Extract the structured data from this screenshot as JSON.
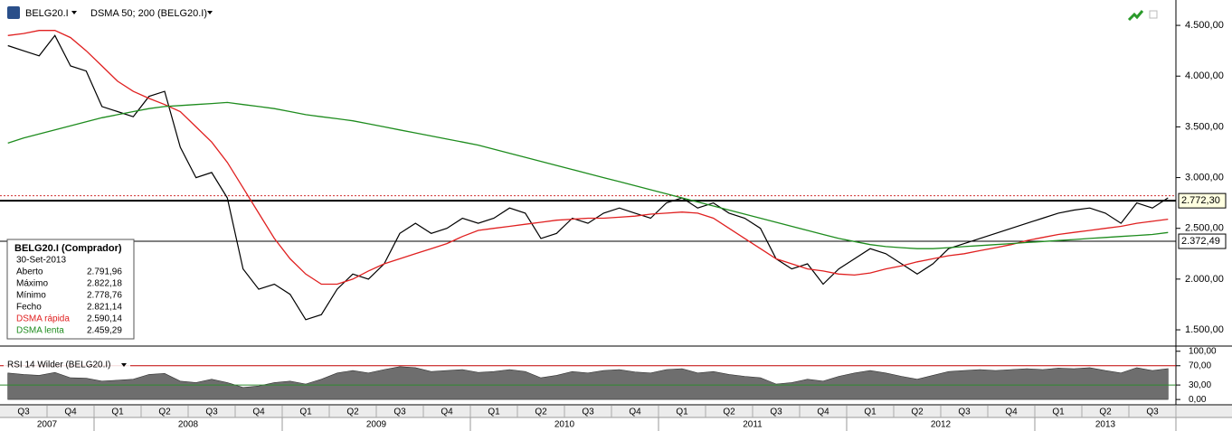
{
  "header": {
    "symbol": "BELG20.I",
    "indicator": "DSMA 50; 200 (BELG20.I)"
  },
  "info_box": {
    "title": "BELG20.I (Comprador)",
    "date": "30-Set-2013",
    "rows": [
      [
        "Aberto",
        "2.791,96"
      ],
      [
        "Máximo",
        "2.822,18"
      ],
      [
        "Mínimo",
        "2.778,76"
      ],
      [
        "Fecho",
        "2.821,14"
      ],
      [
        "DSMA rápida",
        "2.590,14"
      ],
      [
        "DSMA lenta",
        "2.459,29"
      ]
    ]
  },
  "x_axis": {
    "quarters": [
      "Q3",
      "Q4",
      "Q1",
      "Q2",
      "Q3",
      "Q4",
      "Q1",
      "Q2",
      "Q3",
      "Q4",
      "Q1",
      "Q2",
      "Q3",
      "Q4",
      "Q1",
      "Q2",
      "Q3",
      "Q4",
      "Q1",
      "Q2",
      "Q3",
      "Q4",
      "Q1",
      "Q2",
      "Q3"
    ],
    "years": [
      "2007",
      "2008",
      "2009",
      "2010",
      "2011",
      "2012",
      "2013"
    ]
  },
  "chart_data": [
    {
      "type": "line",
      "ylim": [
        1340,
        4750
      ],
      "yticks": [
        {
          "value": 1500,
          "label": "1.500,00"
        },
        {
          "value": 2000,
          "label": "2.000,00"
        },
        {
          "value": 2500,
          "label": "2.500,00"
        },
        {
          "value": 3000,
          "label": "3.000,00"
        },
        {
          "value": 3500,
          "label": "3.500,00"
        },
        {
          "value": 4000,
          "label": "4.000,00"
        },
        {
          "value": 4500,
          "label": "4.500,00"
        }
      ],
      "series": [
        {
          "name": "BELG20.I",
          "color": "#000000",
          "values": [
            4300,
            4250,
            4200,
            4400,
            4100,
            4050,
            3700,
            3650,
            3600,
            3800,
            3850,
            3300,
            3000,
            3050,
            2800,
            2100,
            1900,
            1950,
            1850,
            1600,
            1650,
            1900,
            2050,
            2000,
            2150,
            2450,
            2550,
            2450,
            2500,
            2600,
            2550,
            2600,
            2700,
            2650,
            2400,
            2450,
            2600,
            2550,
            2650,
            2700,
            2650,
            2600,
            2750,
            2800,
            2700,
            2750,
            2650,
            2600,
            2500,
            2200,
            2100,
            2150,
            1950,
            2100,
            2200,
            2300,
            2250,
            2150,
            2050,
            2150,
            2300,
            2350,
            2400,
            2450,
            2500,
            2550,
            2600,
            2650,
            2680,
            2700,
            2650,
            2550,
            2750,
            2700,
            2800
          ]
        },
        {
          "name": "DSMA rápida",
          "color": "#e02020",
          "values": [
            4400,
            4420,
            4450,
            4450,
            4380,
            4250,
            4100,
            3950,
            3850,
            3780,
            3720,
            3650,
            3500,
            3350,
            3150,
            2900,
            2650,
            2400,
            2200,
            2050,
            1950,
            1950,
            2000,
            2080,
            2150,
            2200,
            2250,
            2300,
            2350,
            2420,
            2480,
            2500,
            2520,
            2540,
            2560,
            2580,
            2590,
            2600,
            2600,
            2610,
            2620,
            2640,
            2650,
            2660,
            2650,
            2600,
            2500,
            2400,
            2300,
            2200,
            2150,
            2100,
            2080,
            2050,
            2040,
            2060,
            2100,
            2130,
            2170,
            2200,
            2230,
            2250,
            2280,
            2310,
            2340,
            2380,
            2410,
            2440,
            2460,
            2480,
            2500,
            2520,
            2550,
            2570,
            2590
          ]
        },
        {
          "name": "DSMA lenta",
          "color": "#1e8c1e",
          "values": [
            3340,
            3390,
            3430,
            3470,
            3510,
            3550,
            3590,
            3620,
            3650,
            3680,
            3700,
            3710,
            3720,
            3730,
            3740,
            3720,
            3700,
            3680,
            3650,
            3620,
            3600,
            3580,
            3560,
            3530,
            3500,
            3470,
            3440,
            3410,
            3380,
            3350,
            3320,
            3280,
            3240,
            3200,
            3160,
            3120,
            3080,
            3040,
            3000,
            2960,
            2920,
            2880,
            2840,
            2800,
            2760,
            2720,
            2680,
            2640,
            2600,
            2560,
            2520,
            2480,
            2440,
            2400,
            2370,
            2340,
            2320,
            2310,
            2300,
            2300,
            2310,
            2320,
            2330,
            2340,
            2350,
            2360,
            2370,
            2380,
            2390,
            2400,
            2410,
            2420,
            2430,
            2440,
            2459
          ]
        }
      ],
      "levels": [
        {
          "value": 2772.3,
          "label": "2.772,30"
        },
        {
          "value": 2372.49,
          "label": "2.372,49"
        }
      ],
      "close_line": 2821.14
    },
    {
      "type": "area",
      "title": "RSI 14 Wilder (BELG20.I)",
      "ylim": [
        -11,
        107
      ],
      "yticks": [
        {
          "value": 0,
          "label": "0,00"
        },
        {
          "value": 30,
          "label": "30,00"
        },
        {
          "value": 70,
          "label": "70,00"
        },
        {
          "value": 100,
          "label": "100,00"
        }
      ],
      "series": [
        {
          "name": "RSI",
          "color": "#6e6e6e",
          "values": [
            55,
            52,
            50,
            56,
            45,
            44,
            38,
            40,
            42,
            52,
            54,
            38,
            35,
            42,
            35,
            25,
            28,
            35,
            38,
            32,
            42,
            55,
            60,
            55,
            62,
            68,
            66,
            58,
            60,
            62,
            56,
            58,
            62,
            58,
            45,
            50,
            58,
            55,
            60,
            62,
            57,
            55,
            62,
            64,
            55,
            58,
            52,
            48,
            45,
            32,
            35,
            42,
            38,
            48,
            55,
            60,
            55,
            48,
            42,
            50,
            58,
            60,
            62,
            60,
            62,
            64,
            62,
            65,
            64,
            66,
            60,
            55,
            66,
            60,
            64
          ]
        }
      ],
      "levels": [
        {
          "value": 70,
          "color": "#c00000"
        },
        {
          "value": 30,
          "color": "#2e8b2e"
        }
      ]
    }
  ]
}
